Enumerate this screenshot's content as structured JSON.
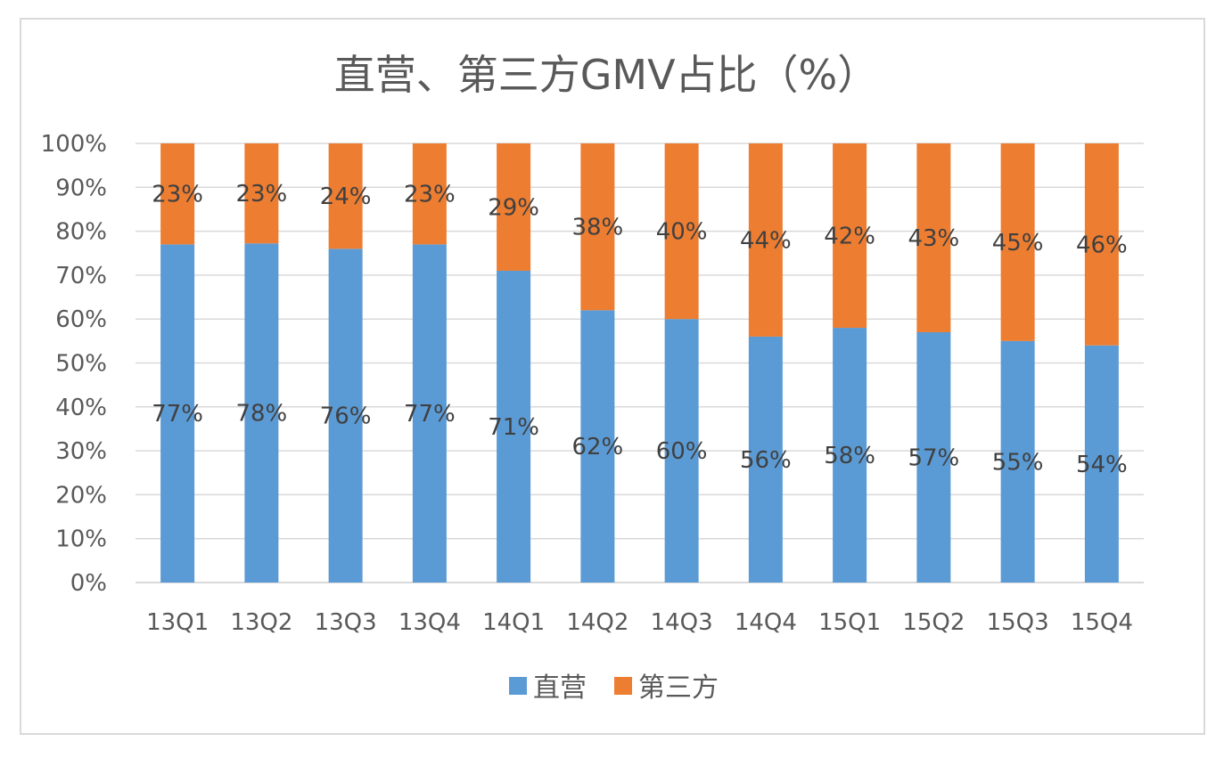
{
  "chart_data": {
    "type": "bar",
    "stacked": "percent",
    "title": "直营、第三方GMV占比（%）",
    "xlabel": "",
    "ylabel": "",
    "ylim": [
      0,
      100
    ],
    "y_ticks": [
      "0%",
      "10%",
      "20%",
      "30%",
      "40%",
      "50%",
      "60%",
      "70%",
      "80%",
      "90%",
      "100%"
    ],
    "grid": true,
    "legend_position": "bottom",
    "categories": [
      "13Q1",
      "13Q2",
      "13Q3",
      "13Q4",
      "14Q1",
      "14Q2",
      "14Q3",
      "14Q4",
      "15Q1",
      "15Q2",
      "15Q3",
      "15Q4"
    ],
    "series": [
      {
        "name": "直营",
        "color": "#5b9bd5",
        "values": [
          77,
          78,
          76,
          77,
          71,
          62,
          60,
          56,
          58,
          57,
          55,
          54
        ],
        "labels": [
          "77%",
          "78%",
          "76%",
          "77%",
          "71%",
          "62%",
          "60%",
          "56%",
          "58%",
          "57%",
          "55%",
          "54%"
        ]
      },
      {
        "name": "第三方",
        "color": "#ed7d31",
        "values": [
          23,
          23,
          24,
          23,
          29,
          38,
          40,
          44,
          42,
          43,
          45,
          46
        ],
        "labels": [
          "23%",
          "23%",
          "24%",
          "23%",
          "29%",
          "38%",
          "40%",
          "44%",
          "42%",
          "43%",
          "45%",
          "46%"
        ]
      }
    ]
  }
}
